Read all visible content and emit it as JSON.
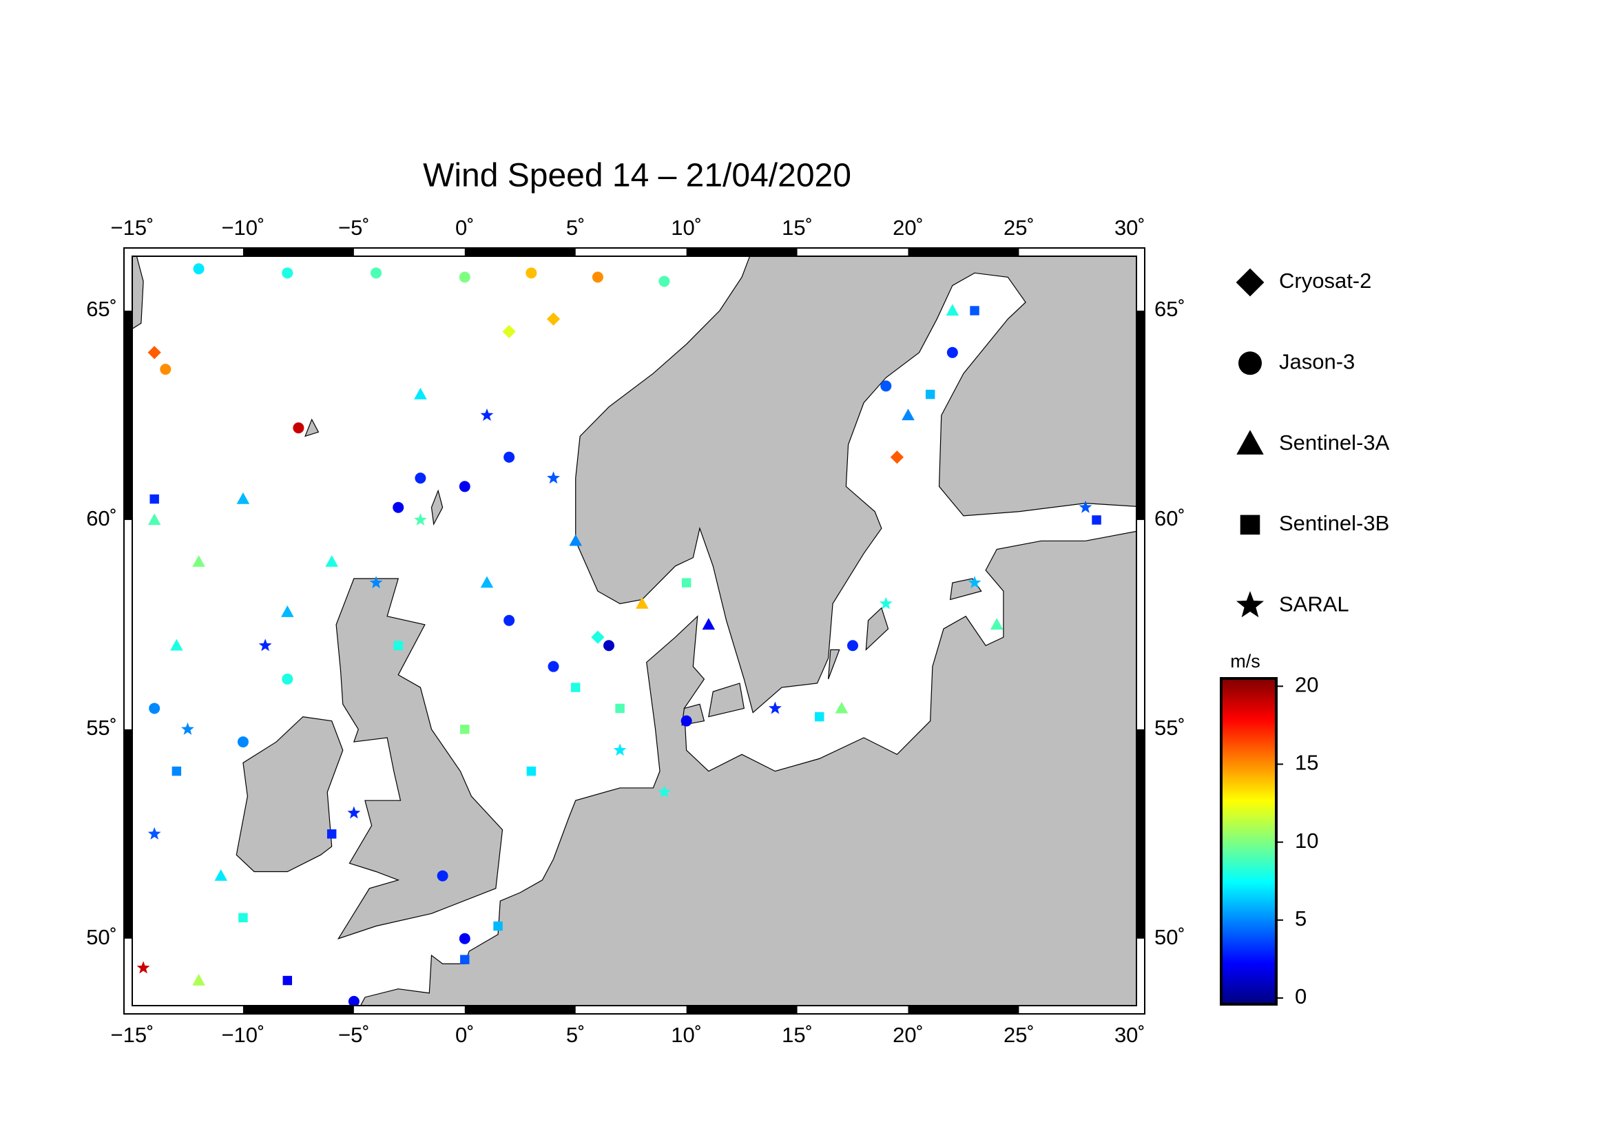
{
  "chart_data": {
    "type": "scatter",
    "title": "Wind Speed 14 – 21/04/2020",
    "xlim": [
      -15,
      30.3
    ],
    "ylim": [
      48.4,
      66.3
    ],
    "xticks": [
      {
        "value": -15,
        "label": "−15˚"
      },
      {
        "value": -10,
        "label": "−10˚"
      },
      {
        "value": -5,
        "label": "−5˚"
      },
      {
        "value": 0,
        "label": "0˚"
      },
      {
        "value": 5,
        "label": "5˚"
      },
      {
        "value": 10,
        "label": "10˚"
      },
      {
        "value": 15,
        "label": "15˚"
      },
      {
        "value": 20,
        "label": "20˚"
      },
      {
        "value": 25,
        "label": "25˚"
      },
      {
        "value": 30,
        "label": "30˚"
      }
    ],
    "yticks": [
      {
        "value": 50,
        "label": "50˚"
      },
      {
        "value": 55,
        "label": "55˚"
      },
      {
        "value": 60,
        "label": "60˚"
      },
      {
        "value": 65,
        "label": "65˚"
      }
    ],
    "grid": true,
    "colorbar": {
      "label": "m/s",
      "clim": [
        -0.4,
        20.5
      ],
      "ticks": [
        0,
        5,
        10,
        15,
        20
      ],
      "colormap": "jet"
    },
    "series": [
      {
        "name": "Cryosat-2",
        "marker": "diamond",
        "x": [
          2,
          4,
          19.5,
          -14,
          6
        ],
        "y": [
          64.5,
          64.8,
          61.5,
          64,
          57.2
        ],
        "values": [
          12,
          14,
          16,
          16,
          8
        ]
      },
      {
        "name": "Jason-3",
        "marker": "circle",
        "x": [
          -12,
          -8,
          -4,
          0,
          3,
          6,
          9,
          -13.5,
          -7.5,
          -2,
          0,
          2,
          -3,
          -14,
          -10,
          -8,
          2,
          4,
          6.5,
          -5,
          17.5,
          19,
          22,
          10,
          0,
          -1
        ],
        "y": [
          66,
          65.9,
          65.9,
          65.8,
          65.9,
          65.8,
          65.7,
          63.6,
          62.2,
          61,
          60.8,
          61.5,
          60.3,
          55.5,
          54.7,
          56.2,
          57.6,
          56.5,
          57,
          48.5,
          57,
          63.2,
          64,
          55.2,
          50,
          51.5
        ],
        "values": [
          7,
          8,
          9,
          10,
          14,
          15,
          9,
          15,
          19,
          3,
          2,
          3,
          2,
          5,
          5,
          8,
          3,
          3,
          1,
          2,
          3,
          4,
          3,
          2,
          2,
          3
        ]
      },
      {
        "name": "Sentinel-3A",
        "marker": "triangle",
        "x": [
          -14,
          -12,
          -10,
          -8,
          -6,
          -13,
          -12,
          -11,
          1,
          5,
          8,
          11,
          17,
          20,
          22,
          24,
          -2
        ],
        "y": [
          60,
          59,
          60.5,
          57.8,
          59,
          57,
          49,
          51.5,
          58.5,
          59.5,
          58,
          57.5,
          55.5,
          62.5,
          65,
          57.5,
          63
        ],
        "values": [
          9,
          10,
          6,
          6,
          8,
          8,
          11,
          7,
          6,
          5,
          14,
          2,
          10,
          5,
          8,
          9,
          7
        ]
      },
      {
        "name": "Sentinel-3B",
        "marker": "square",
        "x": [
          -14,
          -13,
          -10,
          -8,
          -6,
          -3,
          0,
          3,
          5,
          7,
          10,
          16,
          21,
          23,
          28.5,
          0,
          1.5
        ],
        "y": [
          60.5,
          54,
          50.5,
          49,
          52.5,
          57,
          55,
          54,
          56,
          55.5,
          58.5,
          55.3,
          63,
          65,
          60,
          49.5,
          50.3
        ],
        "values": [
          3,
          5,
          8,
          2,
          3,
          8,
          10,
          7,
          8,
          9,
          9,
          7,
          6,
          4,
          3,
          4,
          6
        ]
      },
      {
        "name": "SARAL",
        "marker": "star",
        "x": [
          -14.5,
          -14,
          -12.5,
          -9,
          -4,
          -2,
          1,
          4,
          7,
          9,
          14,
          19,
          23,
          28,
          -5
        ],
        "y": [
          49.3,
          52.5,
          55,
          57,
          58.5,
          60,
          62.5,
          61,
          54.5,
          53.5,
          55.5,
          58,
          58.5,
          60.3,
          53
        ],
        "values": [
          19,
          4,
          5,
          3,
          5,
          9,
          3,
          4,
          7,
          8,
          3,
          8,
          6,
          4,
          3
        ]
      }
    ]
  }
}
